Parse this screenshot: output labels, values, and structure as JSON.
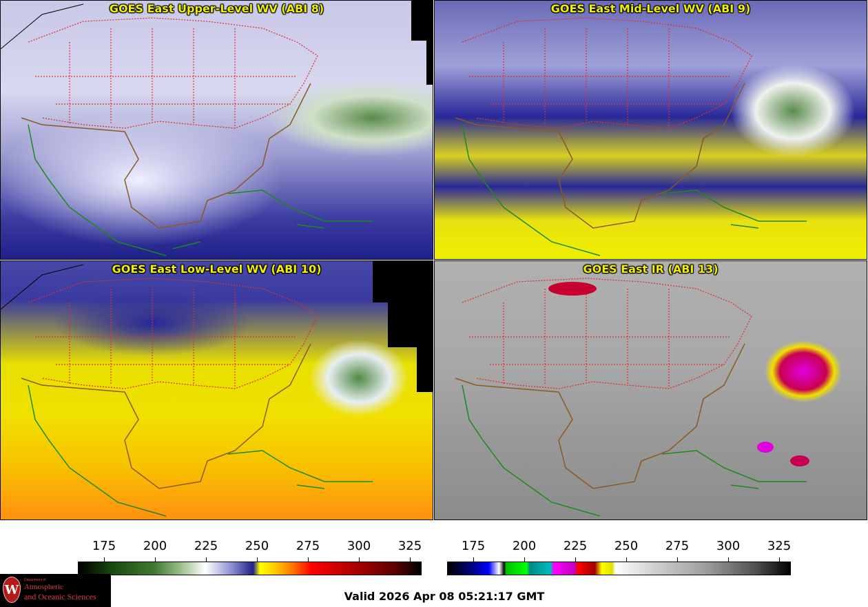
{
  "panels": [
    {
      "title": "GOES East Upper-Level WV (ABI 8)"
    },
    {
      "title": "GOES East Mid-Level WV (ABI 9)"
    },
    {
      "title": "GOES East Low-Level WV (ABI 10)"
    },
    {
      "title": "GOES East IR (ABI 13)"
    }
  ],
  "colorbars": [
    {
      "name": "water-vapor-scale",
      "ticks": [
        "175",
        "200",
        "225",
        "250",
        "275",
        "300",
        "325"
      ]
    },
    {
      "name": "infrared-scale",
      "ticks": [
        "175",
        "200",
        "225",
        "250",
        "275",
        "300",
        "325"
      ]
    }
  ],
  "colors": {
    "title": "#f0f000",
    "state_borders": "#e03030",
    "coastlines": "#1a8a1a",
    "country_borders": "#8a5a20"
  },
  "logo": {
    "dept": "Department of",
    "line1": "Atmospheric",
    "line2": "and Oceanic Sciences",
    "seal": "W"
  },
  "valid_time": "Valid 2026 Apr 08 05:21:17 GMT"
}
